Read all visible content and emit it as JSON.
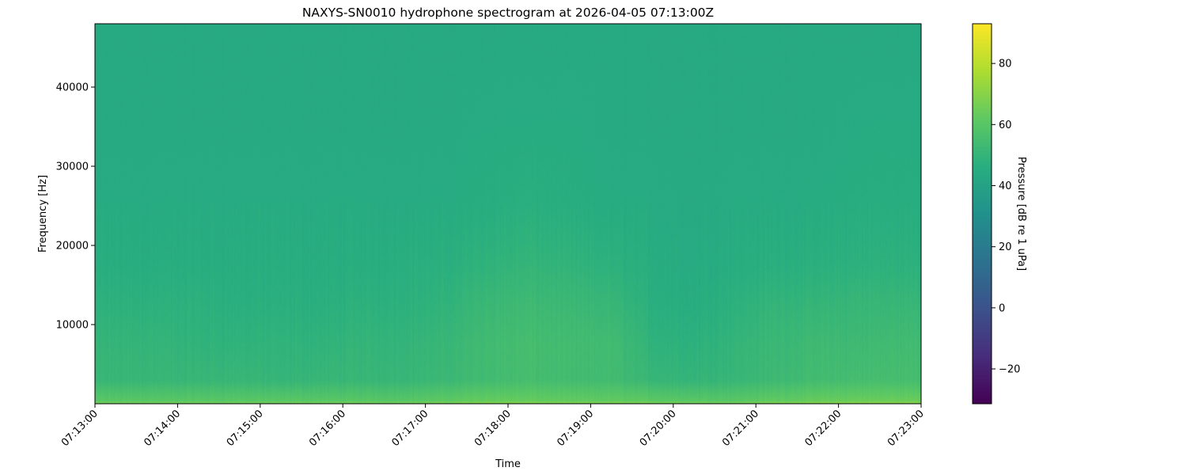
{
  "chart_data": {
    "type": "heatmap",
    "title": "NAXYS-SN0010 hydrophone spectrogram at 2026-04-05 07:13:00Z",
    "xlabel": "Time",
    "ylabel": "Frequency [Hz]",
    "colorbar_label": "Pressure [dB re 1 uPa]",
    "colormap": "viridis",
    "xlim": [
      "07:13:00",
      "07:23:00"
    ],
    "ylim": [
      0,
      48000
    ],
    "clim": [
      -31.4,
      93
    ],
    "x_ticks": [
      "07:13:00",
      "07:14:00",
      "07:15:00",
      "07:16:00",
      "07:17:00",
      "07:18:00",
      "07:19:00",
      "07:20:00",
      "07:21:00",
      "07:22:00",
      "07:23:00"
    ],
    "y_ticks": [
      10000,
      20000,
      30000,
      40000
    ],
    "y_tick_labels": [
      "10000",
      "20000",
      "30000",
      "40000"
    ],
    "colorbar_ticks": [
      -20,
      0,
      20,
      40,
      60,
      80
    ],
    "colorbar_tick_labels": [
      "−20",
      "0",
      "20",
      "40",
      "60",
      "80"
    ],
    "grid": false,
    "time_bins": [
      "07:13:00",
      "07:13:30",
      "07:14:00",
      "07:14:30",
      "07:15:00",
      "07:15:30",
      "07:16:00",
      "07:16:30",
      "07:17:00",
      "07:17:30",
      "07:18:00",
      "07:18:30",
      "07:19:00",
      "07:19:30",
      "07:20:00",
      "07:20:30",
      "07:21:00",
      "07:21:30",
      "07:22:00",
      "07:22:30"
    ],
    "frequency_bands_hz": [
      [
        0,
        1000
      ],
      [
        1000,
        5000
      ],
      [
        5000,
        10000
      ],
      [
        10000,
        15000
      ],
      [
        15000,
        20000
      ],
      [
        20000,
        30000
      ],
      [
        30000,
        40000
      ],
      [
        40000,
        48000
      ]
    ],
    "levels_db": [
      [
        60,
        60,
        60,
        60,
        60,
        60,
        60,
        60,
        61,
        63,
        63,
        62,
        62,
        61,
        60,
        60,
        62,
        63,
        64,
        64
      ],
      [
        51,
        51,
        51,
        51,
        50,
        51,
        51,
        51,
        52,
        54,
        55,
        54,
        54,
        51,
        50,
        51,
        53,
        54,
        55,
        55
      ],
      [
        50,
        50,
        49,
        49,
        49,
        49,
        50,
        50,
        51,
        54,
        55,
        54,
        54,
        49,
        48,
        50,
        52,
        53,
        53,
        54
      ],
      [
        48,
        48,
        48,
        47,
        47,
        47,
        48,
        48,
        49,
        52,
        53,
        52,
        51,
        47,
        46,
        48,
        50,
        50,
        51,
        51
      ],
      [
        46,
        46,
        46,
        46,
        46,
        46,
        46,
        47,
        47,
        49,
        50,
        49,
        48,
        46,
        45,
        46,
        47,
        47,
        48,
        48
      ],
      [
        45,
        45,
        45,
        45,
        45,
        45,
        45,
        45,
        45,
        46,
        47,
        46,
        45,
        45,
        44,
        45,
        45,
        45,
        46,
        46
      ],
      [
        44,
        44,
        44,
        44,
        44,
        44,
        44,
        44,
        44,
        45,
        45,
        45,
        44,
        44,
        44,
        44,
        44,
        44,
        45,
        45
      ],
      [
        44,
        44,
        44,
        44,
        44,
        44,
        44,
        44,
        44,
        44,
        44,
        44,
        44,
        44,
        44,
        44,
        44,
        44,
        44,
        44
      ]
    ]
  }
}
